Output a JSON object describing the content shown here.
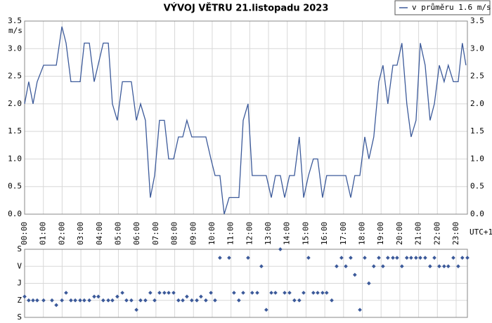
{
  "chart_data": [
    {
      "type": "line",
      "title": "VÝVOJ VĚTRU  21.listopadu 2023",
      "ylabel": "m/s",
      "xlabel": "UTC+1",
      "grid": true,
      "legend": "top-right",
      "xlim": [
        0,
        23.6
      ],
      "ylim": [
        0,
        3.5
      ],
      "yticks": [
        {
          "value": 0,
          "label": "0.0"
        },
        0.5,
        {
          "value": 1,
          "label": "1.0"
        },
        1.5,
        {
          "value": 2,
          "label": "2.0"
        },
        2.5,
        {
          "value": 3,
          "label": "3.0"
        },
        3.5
      ],
      "xticks": [
        {
          "value": 0,
          "label": "00:00"
        },
        {
          "value": 1,
          "label": "01:00"
        },
        {
          "value": 2,
          "label": "02:00"
        },
        {
          "value": 3,
          "label": "03:00"
        },
        {
          "value": 4,
          "label": "04:00"
        },
        {
          "value": 5,
          "label": "05:00"
        },
        {
          "value": 6,
          "label": "06:00"
        },
        {
          "value": 7,
          "label": "07:00"
        },
        {
          "value": 8,
          "label": "08:00"
        },
        {
          "value": 9,
          "label": "09:00"
        },
        {
          "value": 10,
          "label": "10:00"
        },
        {
          "value": 11,
          "label": "11:00"
        },
        {
          "value": 12,
          "label": "12:00"
        },
        {
          "value": 13,
          "label": "13:00"
        },
        {
          "value": 14,
          "label": "14:00"
        },
        {
          "value": 15,
          "label": "15:00"
        },
        {
          "value": 16,
          "label": "16:00"
        },
        {
          "value": 17,
          "label": "17:00"
        },
        {
          "value": 18,
          "label": "18:00"
        },
        {
          "value": 19,
          "label": "19:00"
        },
        {
          "value": 20,
          "label": "20:00"
        },
        {
          "value": 21,
          "label": "21:00"
        },
        {
          "value": 22,
          "label": "22:00"
        },
        {
          "value": 23,
          "label": "23:00"
        }
      ],
      "series": [
        {
          "name": "v průměru 1.6 m/s",
          "color": "#3c5a9a",
          "x": [
            0,
            0.22,
            0.45,
            0.67,
            1.01,
            1.69,
            1.99,
            2.21,
            2.47,
            2.96,
            3.18,
            3.45,
            3.71,
            4.19,
            4.46,
            4.68,
            4.94,
            5.21,
            5.69,
            5.96,
            6.18,
            6.44,
            6.7,
            6.93,
            7.19,
            7.45,
            7.68,
            7.94,
            8.2,
            8.43,
            8.65,
            8.91,
            9.66,
            9.93,
            10.15,
            10.41,
            10.64,
            10.9,
            11.42,
            11.65,
            11.91,
            12.13,
            12.88,
            13.15,
            13.37,
            13.63,
            13.86,
            14.12,
            14.38,
            14.64,
            14.87,
            15.13,
            15.39,
            15.62,
            15.88,
            16.1,
            17.12,
            17.38,
            17.6,
            17.87,
            18.13,
            18.35,
            18.61,
            18.88,
            19.1,
            19.36,
            19.63,
            19.85,
            20.11,
            20.37,
            20.6,
            20.86,
            21.09,
            21.35,
            21.61,
            21.84,
            22.1,
            22.36,
            22.58,
            22.85,
            23.11,
            23.33,
            23.52
          ],
          "values": [
            2.0,
            2.4,
            2.0,
            2.4,
            2.7,
            2.7,
            3.4,
            3.1,
            2.4,
            2.4,
            3.1,
            3.1,
            2.4,
            3.1,
            3.1,
            2.0,
            1.7,
            2.4,
            2.4,
            1.7,
            2.0,
            1.7,
            0.3,
            0.7,
            1.7,
            1.7,
            1.0,
            1.0,
            1.4,
            1.4,
            1.7,
            1.4,
            1.4,
            1.0,
            0.7,
            0.7,
            0.0,
            0.3,
            0.3,
            1.7,
            2.0,
            0.7,
            0.7,
            0.3,
            0.7,
            0.7,
            0.3,
            0.7,
            0.7,
            1.4,
            0.3,
            0.7,
            1.0,
            1.0,
            0.3,
            0.7,
            0.7,
            0.3,
            0.7,
            0.7,
            1.4,
            1.0,
            1.4,
            2.4,
            2.7,
            2.0,
            2.7,
            2.7,
            3.1,
            2.0,
            1.4,
            1.7,
            3.1,
            2.7,
            1.7,
            2.0,
            2.7,
            2.4,
            2.7,
            2.4,
            2.4,
            3.1,
            2.7
          ]
        }
      ]
    },
    {
      "type": "scatter",
      "grid": true,
      "color": "#3c5a9a",
      "xlim": [
        0,
        23.6
      ],
      "ylim": [
        360,
        0
      ],
      "yticks": [
        {
          "value": 0,
          "label": "S"
        },
        {
          "value": 90,
          "label": "V"
        },
        {
          "value": 180,
          "label": "J"
        },
        {
          "value": 270,
          "label": "Z"
        },
        {
          "value": 360,
          "label": "S"
        }
      ],
      "x": [
        0,
        0.22,
        0.45,
        0.67,
        1.01,
        1.46,
        1.69,
        1.99,
        2.21,
        2.47,
        2.7,
        2.96,
        3.18,
        3.45,
        3.71,
        3.93,
        4.19,
        4.46,
        4.68,
        4.94,
        5.21,
        5.43,
        5.69,
        5.96,
        6.18,
        6.44,
        6.7,
        6.93,
        7.19,
        7.45,
        7.68,
        7.94,
        8.2,
        8.43,
        8.65,
        8.91,
        9.18,
        9.4,
        9.66,
        9.93,
        10.15,
        10.41,
        10.9,
        11.16,
        11.42,
        11.65,
        11.91,
        12.13,
        12.4,
        12.62,
        12.88,
        13.15,
        13.37,
        13.63,
        13.86,
        14.12,
        14.38,
        14.64,
        14.87,
        15.13,
        15.39,
        15.62,
        15.88,
        16.1,
        16.37,
        16.63,
        16.89,
        17.12,
        17.38,
        17.6,
        17.87,
        18.13,
        18.35,
        18.61,
        18.88,
        19.1,
        19.36,
        19.63,
        19.85,
        20.11,
        20.37,
        20.6,
        20.86,
        21.09,
        21.35,
        21.61,
        21.84,
        22.1,
        22.36,
        22.58,
        22.85,
        23.11,
        23.33,
        23.6
      ],
      "values": [
        250,
        270,
        270,
        270,
        270,
        270,
        295,
        270,
        230,
        270,
        270,
        270,
        270,
        270,
        250,
        250,
        270,
        270,
        270,
        250,
        230,
        270,
        270,
        320,
        270,
        270,
        230,
        270,
        230,
        230,
        230,
        230,
        270,
        270,
        250,
        270,
        270,
        250,
        270,
        230,
        270,
        45,
        45,
        230,
        270,
        230,
        45,
        230,
        230,
        90,
        320,
        230,
        230,
        0,
        230,
        230,
        270,
        270,
        230,
        45,
        230,
        230,
        230,
        230,
        270,
        90,
        45,
        90,
        45,
        135,
        320,
        45,
        180,
        90,
        45,
        90,
        45,
        45,
        45,
        90,
        45,
        45,
        45,
        45,
        45,
        90,
        45,
        90,
        90,
        90,
        45,
        90,
        45,
        45
      ]
    }
  ]
}
